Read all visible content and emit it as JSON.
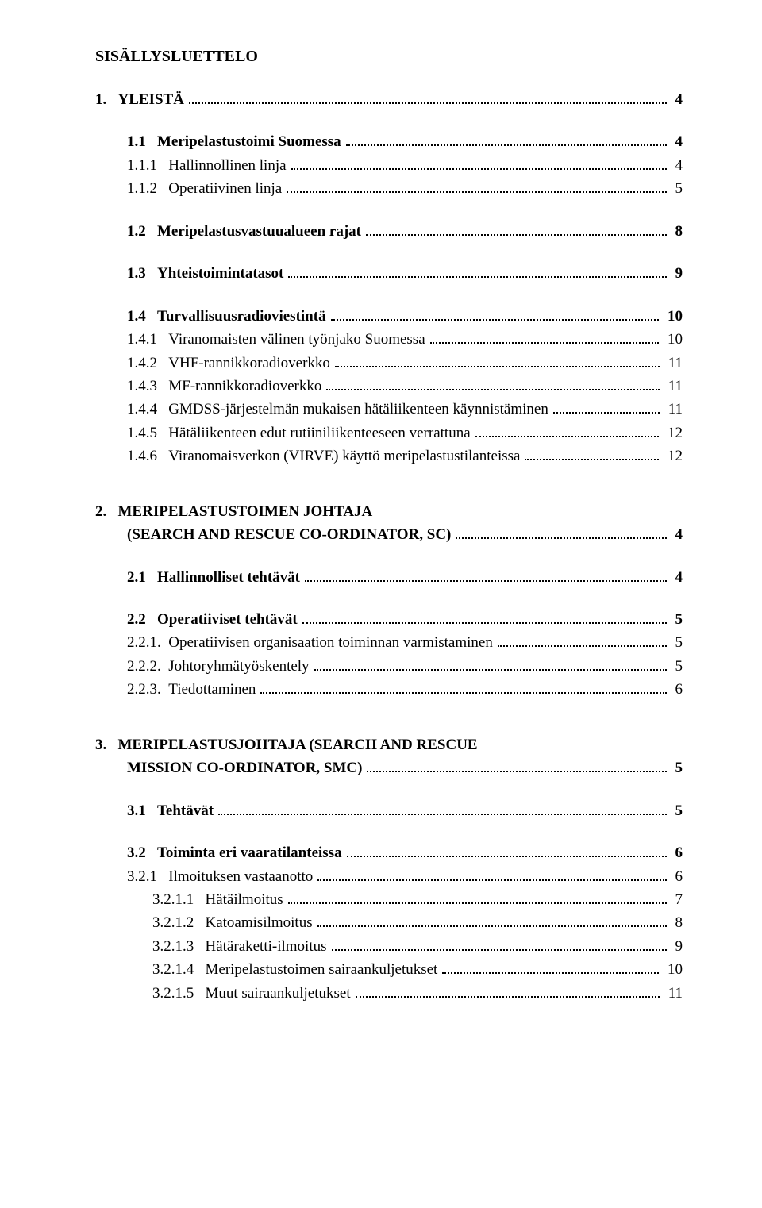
{
  "doc": {
    "title": "SISÄLLYSLUETTELO",
    "font_family": "Times New Roman",
    "text_color": "#000000",
    "background_color": "#ffffff",
    "base_font_size_pt": 14,
    "leader_style": "dotted",
    "leader_color": "#000000"
  },
  "entries": [
    {
      "num": "1.",
      "label": "YLEISTÄ",
      "page": "4",
      "bold": true,
      "indent": 0,
      "gap_before": 0
    },
    {
      "num": "1.1",
      "label": "Meripelastustoimi Suomessa",
      "page": "4",
      "bold": true,
      "indent": 1,
      "gap_before": 1
    },
    {
      "num": "1.1.1",
      "label": "Hallinnollinen linja",
      "page": "4",
      "bold": false,
      "indent": 2,
      "gap_before": 0
    },
    {
      "num": "1.1.2",
      "label": "Operatiivinen linja",
      "page": "5",
      "bold": false,
      "indent": 2,
      "gap_before": 0
    },
    {
      "num": "1.2",
      "label": "Meripelastusvastuualueen rajat",
      "page": "8",
      "bold": true,
      "indent": 1,
      "gap_before": 1
    },
    {
      "num": "1.3",
      "label": "Yhteistoimintatasot",
      "page": "9",
      "bold": true,
      "indent": 1,
      "gap_before": 1
    },
    {
      "num": "1.4",
      "label": "Turvallisuusradioviestintä",
      "page": "10",
      "bold": true,
      "indent": 1,
      "gap_before": 1
    },
    {
      "num": "1.4.1",
      "label": "Viranomaisten välinen työnjako Suomessa",
      "page": "10",
      "bold": false,
      "indent": 2,
      "gap_before": 0
    },
    {
      "num": "1.4.2",
      "label": "VHF-rannikkoradioverkko",
      "page": "11",
      "bold": false,
      "indent": 2,
      "gap_before": 0
    },
    {
      "num": "1.4.3",
      "label": "MF-rannikkoradioverkko",
      "page": "11",
      "bold": false,
      "indent": 2,
      "gap_before": 0
    },
    {
      "num": "1.4.4",
      "label": "GMDSS-järjestelmän mukaisen hätäliikenteen käynnistäminen",
      "page": "11",
      "bold": false,
      "indent": 2,
      "gap_before": 0
    },
    {
      "num": "1.4.5",
      "label": "Hätäliikenteen edut rutiiniliikenteeseen verrattuna",
      "page": "12",
      "bold": false,
      "indent": 2,
      "gap_before": 0
    },
    {
      "num": "1.4.6",
      "label": "Viranomaisverkon (VIRVE) käyttö meripelastustilanteissa",
      "page": "12",
      "bold": false,
      "indent": 2,
      "gap_before": 0
    },
    {
      "num": "2.",
      "label": "MERIPELASTUSTOIMEN JOHTAJA",
      "page": "",
      "bold": true,
      "indent": 0,
      "gap_before": 2,
      "no_leader": true
    },
    {
      "num": "",
      "label": "(SEARCH AND RESCUE CO-ORDINATOR, SC)",
      "page": "4",
      "bold": true,
      "indent": "0b",
      "gap_before": 0
    },
    {
      "num": "2.1",
      "label": "Hallinnolliset tehtävät",
      "page": "4",
      "bold": true,
      "indent": 1,
      "gap_before": 1
    },
    {
      "num": "2.2",
      "label": "Operatiiviset tehtävät",
      "page": "5",
      "bold": true,
      "indent": 1,
      "gap_before": 1
    },
    {
      "num": "2.2.1.",
      "label": "Operatiivisen organisaation toiminnan varmistaminen",
      "page": "5",
      "bold": false,
      "indent": 2,
      "gap_before": 0
    },
    {
      "num": "2.2.2.",
      "label": "Johtoryhmätyöskentely",
      "page": "5",
      "bold": false,
      "indent": 2,
      "gap_before": 0
    },
    {
      "num": "2.2.3.",
      "label": "Tiedottaminen",
      "page": "6",
      "bold": false,
      "indent": 2,
      "gap_before": 0
    },
    {
      "num": "3.",
      "label": "MERIPELASTUSJOHTAJA (SEARCH AND RESCUE",
      "page": "",
      "bold": true,
      "indent": 0,
      "gap_before": 2,
      "no_leader": true
    },
    {
      "num": "",
      "label": "MISSION CO-ORDINATOR, SMC)",
      "page": "5",
      "bold": true,
      "indent": "0b",
      "gap_before": 0
    },
    {
      "num": "3.1",
      "label": "Tehtävät",
      "page": "5",
      "bold": true,
      "indent": 1,
      "gap_before": 1
    },
    {
      "num": "3.2",
      "label": "Toiminta eri vaaratilanteissa",
      "page": "6",
      "bold": true,
      "indent": 1,
      "gap_before": 1
    },
    {
      "num": "3.2.1",
      "label": "Ilmoituksen vastaanotto",
      "page": "6",
      "bold": false,
      "indent": 2,
      "gap_before": 0
    },
    {
      "num": "3.2.1.1",
      "label": "Hätäilmoitus",
      "page": "7",
      "bold": false,
      "indent": 3,
      "gap_before": 0
    },
    {
      "num": "3.2.1.2",
      "label": "Katoamisilmoitus",
      "page": "8",
      "bold": false,
      "indent": 3,
      "gap_before": 0
    },
    {
      "num": "3.2.1.3",
      "label": "Hätäraketti-ilmoitus",
      "page": "9",
      "bold": false,
      "indent": 3,
      "gap_before": 0
    },
    {
      "num": "3.2.1.4",
      "label": "Meripelastustoimen sairaankuljetukset",
      "page": "10",
      "bold": false,
      "indent": 3,
      "gap_before": 0
    },
    {
      "num": "3.2.1.5",
      "label": "Muut sairaankuljetukset",
      "page": "11",
      "bold": false,
      "indent": 3,
      "gap_before": 0
    }
  ]
}
